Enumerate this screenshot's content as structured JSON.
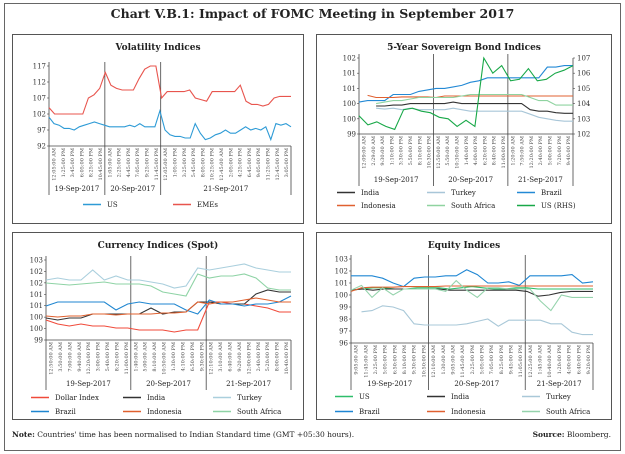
{
  "title": "Chart V.B.1: Impact of FOMC Meeting  in September 2017",
  "note_label": "Note:",
  "note_text": " Countries' time has been normalised to Indian Standard time (GMT +05:30 hours).",
  "source_label": "Source:",
  "source_text": " Bloomberg.",
  "chart_data": [
    {
      "type": "line",
      "title": "Volatility Indices",
      "ylim": [
        92,
        117
      ],
      "yticks": [
        "92",
        "97",
        "102",
        "107",
        "112",
        "117"
      ],
      "days": [
        {
          "label": "19-Sep-2017",
          "xticks": [
            "12:05:00 AM",
            "1:25:00 PM",
            "3:45:00 PM",
            "6:05:00 PM",
            "8:25:00 PM",
            "10:45:00 PM"
          ]
        },
        {
          "label": "20-Sep-2017",
          "xticks": [
            "1:05:00 AM",
            "2:25:00 PM",
            "4:45:00 PM",
            "7:05:00 PM",
            "9:25:00 PM",
            "11:45:00 PM"
          ]
        },
        {
          "label": "21-Sep-2017",
          "xticks": [
            "12:05:00 AM",
            "1:05:00 PM",
            "3:25:00 PM",
            "5:45:00 PM",
            "8:05:00 PM",
            "10:25:00 PM",
            "12:45:00 AM",
            "2:05:00 PM",
            "4:25:00 PM",
            "6:45:00 PM",
            "9:05:00 PM",
            "11:25:00 PM",
            "12:45:00 PM",
            "3:05:00 PM"
          ]
        }
      ],
      "series": [
        {
          "name": "US",
          "color": "#2E9BD6",
          "values": [
            101,
            99,
            98.5,
            97.5,
            97.5,
            97,
            98,
            98.5,
            99,
            99.5,
            99,
            98.5,
            98,
            98,
            98,
            98,
            98.5,
            98,
            99,
            98,
            98,
            98,
            103,
            97,
            95.5,
            95,
            95,
            94.5,
            94.5,
            99,
            96,
            94,
            94.5,
            95.5,
            96,
            97,
            96,
            96,
            97,
            98,
            97,
            97.5,
            97,
            98,
            94,
            99,
            98.5,
            99,
            98
          ]
        },
        {
          "name": "EMEs",
          "color": "#E8554E",
          "values": [
            104,
            102,
            102,
            102,
            102,
            102,
            102,
            107,
            108,
            110,
            115,
            111,
            110,
            109.5,
            109.5,
            109.5,
            113,
            116,
            117,
            117,
            107,
            109,
            109,
            109,
            109,
            109.5,
            107,
            106.5,
            106,
            109,
            109,
            109,
            109,
            109,
            111,
            106,
            105,
            105,
            104.5,
            105,
            107,
            107.5,
            107.5,
            107.5
          ]
        }
      ]
    },
    {
      "type": "line",
      "title": "5-Year Sovereign Bond Indices",
      "ylim": [
        99,
        101.5
      ],
      "yticks": [
        "99",
        "100",
        "100",
        "101",
        "101",
        "102"
      ],
      "ylim_right": [
        102,
        107
      ],
      "yticks_right": [
        "102",
        "103",
        "104",
        "105",
        "106",
        "107"
      ],
      "days": [
        {
          "label": "19-Sep-2017",
          "xticks": [
            "12:09:00 AM",
            "2:29:00 AM",
            "9:30:00 AM",
            "1:10:00 PM",
            "3:30:00 PM",
            "5:50:00 PM",
            "8:10:00 PM",
            "10:30:00 PM"
          ]
        },
        {
          "label": "20-Sep-2017",
          "xticks": [
            "12:50:00 AM",
            "5:50:00 AM",
            "10:30:00 AM",
            "1:40:00 PM",
            "4:00:00 PM",
            "6:20:00 PM",
            "8:40:00 PM",
            "11:00:00 PM"
          ]
        },
        {
          "label": "21-Sep-2017",
          "xticks": [
            "1:20:00 AM",
            "7:50:00 AM",
            "12:20:00 PM",
            "2:40:00 PM",
            "5:00:00 PM",
            "7:20:00 PM",
            "9:40:00 PM"
          ]
        }
      ],
      "series": [
        {
          "name": "India",
          "color": "#333333",
          "values": [
            null,
            null,
            99.92,
            99.92,
            99.95,
            99.95,
            100,
            100,
            100,
            100,
            100,
            100.05,
            100,
            100,
            100,
            100,
            100,
            100,
            100,
            100,
            99.8,
            99.75,
            99.75,
            99.7,
            99.68,
            99.68
          ]
        },
        {
          "name": "Turkey",
          "color": "#A8C6D8",
          "values": [
            null,
            null,
            99.85,
            99.82,
            99.85,
            99.8,
            99.85,
            99.8,
            99.8,
            99.8,
            99.8,
            99.85,
            99.8,
            99.75,
            99.75,
            99.75,
            99.75,
            99.75,
            99.75,
            99.75,
            99.65,
            99.55,
            99.5,
            99.45,
            99.42,
            99.42
          ]
        },
        {
          "name": "Brazil",
          "color": "#2389D5",
          "values": [
            100.05,
            100.1,
            100.1,
            100.1,
            100.3,
            100.3,
            100.3,
            100.4,
            100.45,
            100.5,
            100.5,
            100.55,
            100.6,
            100.7,
            100.75,
            100.85,
            100.85,
            100.85,
            100.85,
            100.85,
            100.85,
            100.85,
            101.2,
            101.2,
            101.25,
            101.25
          ]
        },
        {
          "name": "Indonesia",
          "color": "#E06030",
          "values": [
            null,
            100.27,
            100.2,
            100.2,
            100.2,
            100.22,
            100.22,
            100.22,
            100.22,
            100.2,
            100.25,
            100.25,
            100.25,
            100.25,
            100.25,
            100.25,
            100.25,
            100.25,
            100.25,
            100.25,
            100.25,
            100.25,
            100.25,
            100.25,
            100.25,
            100.25
          ]
        },
        {
          "name": "South Africa",
          "color": "#8FD3A0",
          "values": [
            null,
            null,
            100,
            100.05,
            100.1,
            100.1,
            100.15,
            100.2,
            100.2,
            100.2,
            100.2,
            100.2,
            100.25,
            100.3,
            100.3,
            100.3,
            100.3,
            100.3,
            100.3,
            100.3,
            100.2,
            100.1,
            100.1,
            99.95,
            99.95,
            99.95
          ]
        },
        {
          "name": "US (RHS)",
          "color": "#18A848",
          "axis": "right",
          "values": [
            103.2,
            102.6,
            102.8,
            102.5,
            102.3,
            103.6,
            103.7,
            103.5,
            103.4,
            103.1,
            103,
            102.5,
            102.9,
            102.5,
            107,
            106,
            106.5,
            105.5,
            105.6,
            106.3,
            105.5,
            105.6,
            106,
            106.2,
            106.5
          ]
        }
      ]
    },
    {
      "type": "line",
      "title": "Currency Indices (Spot)",
      "ylim": [
        99,
        103
      ],
      "yticks": [
        "99",
        "100",
        "100",
        "101",
        "101",
        "102",
        "102",
        "103"
      ],
      "days": [
        {
          "label": "19-Sep-2017",
          "xticks": [
            "12:50:00 AM",
            "3:50:00 AM",
            "7:00:00 AM",
            "9:40:00 AM",
            "12:20:00 PM",
            "3:00:00 PM",
            "5:40:00 PM",
            "8:20:00 PM",
            "11:00:00 PM"
          ]
        },
        {
          "label": "20-Sep-2017",
          "xticks": [
            "1:40:00 AM",
            "5:00:00 AM",
            "8:10:00 AM",
            "10:50:00 AM",
            "1:30:00 PM",
            "4:10:00 PM",
            "6:50:00 PM",
            "9:30:00 PM"
          ]
        },
        {
          "label": "21-Sep-2017",
          "xticks": [
            "12:10:00 AM",
            "3:10:00 AM",
            "6:40:00 AM",
            "9:20:00 AM",
            "12:00:00 PM",
            "2:40:00 PM",
            "5:20:00 PM",
            "8:00:00 PM",
            "10:40:00 PM"
          ]
        }
      ],
      "series": [
        {
          "name": "Dollar Index",
          "color": "#F04A3A",
          "values": [
            100,
            99.8,
            99.7,
            99.8,
            99.7,
            99.7,
            99.6,
            99.6,
            99.5,
            99.5,
            99.5,
            99.4,
            99.5,
            99.5,
            100.9,
            100.9,
            100.8,
            100.8,
            100.7,
            100.6,
            100.4,
            100.4
          ]
        },
        {
          "name": "India",
          "color": "#333333",
          "values": [
            100.1,
            100,
            100.1,
            100.1,
            100.3,
            100.3,
            100.3,
            100.3,
            100.3,
            100.6,
            100.3,
            100.4,
            100.4,
            100.9,
            100.9,
            100.8,
            100.8,
            100.8,
            101.3,
            101.5,
            101.4,
            101.4
          ]
        },
        {
          "name": "Turkey",
          "color": "#AACFDD",
          "values": [
            102,
            102.1,
            102,
            102,
            102.5,
            102,
            102.2,
            102,
            102,
            101.9,
            101.8,
            101.6,
            101.7,
            102.6,
            102.5,
            102.6,
            102.7,
            102.8,
            102.6,
            102.5,
            102.4,
            102.4
          ]
        },
        {
          "name": "Brazil",
          "color": "#1F86D0",
          "values": [
            100.7,
            100.9,
            100.9,
            100.9,
            100.9,
            100.9,
            100.5,
            100.8,
            100.9,
            100.8,
            100.8,
            100.8,
            100.5,
            100.3,
            101,
            100.8,
            100.8,
            100.7,
            100.8,
            100.8,
            100.9,
            101.2
          ]
        },
        {
          "name": "Indonesia",
          "color": "#E0602E",
          "values": [
            100.2,
            100.15,
            100.2,
            100.2,
            100.3,
            100.3,
            100.25,
            100.3,
            100.3,
            100.3,
            100.35,
            100.35,
            100.4,
            100.9,
            100.8,
            100.9,
            100.9,
            101,
            101.1,
            101,
            100.9,
            100.9
          ]
        },
        {
          "name": "South Africa",
          "color": "#8ED3A5",
          "values": [
            101.85,
            101.8,
            101.75,
            101.8,
            101.85,
            101.9,
            101.8,
            101.8,
            101.8,
            101.7,
            101.4,
            101.3,
            101.2,
            102.3,
            102.1,
            102.2,
            102.2,
            102.3,
            102.1,
            101.6,
            101.5,
            101.5
          ]
        }
      ]
    },
    {
      "type": "line",
      "title": "Equity Indices",
      "ylim": [
        96,
        103
      ],
      "yticks": [
        "96",
        "97",
        "98",
        "99",
        "100",
        "101",
        "102",
        "103"
      ],
      "days": [
        {
          "label": "19-Sep-2017",
          "xticks": [
            "9:05:00 AM",
            "11:45:00 AM",
            "2:25:00 PM",
            "5:05:00 PM",
            "6:50:00 PM",
            "8:10:00 PM",
            "9:30:00 PM",
            "10:50:00 PM"
          ]
        },
        {
          "label": "20-Sep-2017",
          "xticks": [
            "12:10:00 AM",
            "1:30:00 AM",
            "9:05:00 AM",
            "11:45:00 AM",
            "2:25:00 PM",
            "5:05:00 PM",
            "7:05:00 PM",
            "8:25:00 PM",
            "9:45:00 PM",
            "11:05:00 PM"
          ]
        },
        {
          "label": "21-Sep-2017",
          "xticks": [
            "12:25:00 AM",
            "1:45:00 AM",
            "10:40:00 AM",
            "1:20:00 PM",
            "4:00:00 PM",
            "6:40:00 PM",
            "9:20:00 PM"
          ]
        }
      ],
      "series": [
        {
          "name": "US",
          "color": "#2EBE6A",
          "values": [
            100.4,
            100.5,
            100.6,
            100.6,
            100.5,
            100.5,
            100.6,
            100.6,
            100.6,
            100.5,
            100.6,
            100.7,
            100.6,
            100.5,
            100.5,
            100.6,
            100.6,
            100.5,
            100.5,
            100.5,
            100.5,
            100.5,
            100.5
          ]
        },
        {
          "name": "India",
          "color": "#333333",
          "values": [
            100.4,
            100.5,
            100.4,
            100.5,
            100.5,
            100.5,
            100.5,
            100.5,
            100.5,
            100.4,
            100.4,
            100.4,
            100.4,
            100.4,
            100.4,
            100.4,
            100.3,
            99.9,
            100,
            100.2,
            100.3,
            100.3,
            100.3
          ]
        },
        {
          "name": "Turkey",
          "color": "#A9C8D8",
          "values": [
            null,
            98.6,
            98.7,
            99.1,
            99,
            98.7,
            97.6,
            97.5,
            97.5,
            97.5,
            97.5,
            97.6,
            97.8,
            98,
            97.4,
            97.9,
            97.9,
            97.9,
            97.9,
            97.6,
            97.6,
            96.9,
            96.7,
            96.7
          ]
        },
        {
          "name": "Brazil",
          "color": "#1E86D3",
          "values": [
            101.6,
            101.6,
            101.6,
            101.4,
            101,
            100.7,
            101.4,
            101.5,
            101.5,
            101.6,
            101.6,
            102.1,
            101.7,
            101,
            101,
            101.1,
            100.8,
            101.6,
            101.6,
            101.6,
            101.6,
            101.7,
            101,
            101.1
          ]
        },
        {
          "name": "Indonesia",
          "color": "#E06030",
          "values": [
            100.3,
            100.6,
            100.65,
            100.65,
            100.65,
            100.7,
            100.7,
            100.7,
            100.7,
            100.75,
            100.75,
            100.75,
            100.75,
            100.75,
            100.75,
            100.75,
            100.75,
            100.75,
            100.75,
            100.75,
            100.75,
            100.75,
            100.75,
            100.75
          ]
        },
        {
          "name": "South Africa",
          "color": "#95D3AC",
          "values": [
            100.4,
            100.8,
            99.8,
            100.6,
            100,
            100.5,
            100.5,
            100.5,
            100.5,
            100.3,
            101.2,
            100.4,
            99.8,
            100.6,
            100.6,
            100.5,
            100.5,
            100.5,
            99.5,
            98.7,
            100,
            99.8,
            99.8,
            99.8
          ]
        }
      ]
    }
  ]
}
